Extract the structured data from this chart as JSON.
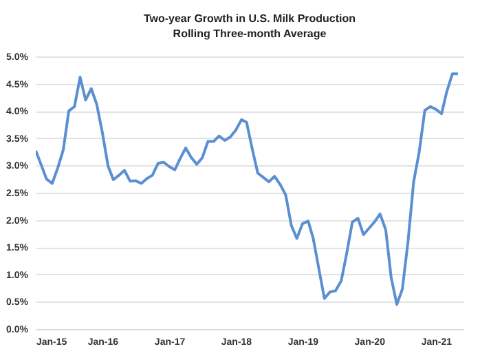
{
  "chart_data": {
    "type": "line",
    "title": "Two-year Growth in U.S. Milk Production",
    "subtitle": "Rolling Three-month Average",
    "x": [
      "2015-01",
      "2015-02",
      "2015-03",
      "2015-04",
      "2015-05",
      "2015-06",
      "2015-07",
      "2015-08",
      "2015-09",
      "2015-10",
      "2015-11",
      "2015-12",
      "2016-01",
      "2016-02",
      "2016-03",
      "2016-04",
      "2016-05",
      "2016-06",
      "2016-07",
      "2016-08",
      "2016-09",
      "2016-10",
      "2016-11",
      "2016-12",
      "2017-01",
      "2017-02",
      "2017-03",
      "2017-04",
      "2017-05",
      "2017-06",
      "2017-07",
      "2017-08",
      "2017-09",
      "2017-10",
      "2017-11",
      "2017-12",
      "2018-01",
      "2018-02",
      "2018-03",
      "2018-04",
      "2018-05",
      "2018-06",
      "2018-07",
      "2018-08",
      "2018-09",
      "2018-10",
      "2018-11",
      "2018-12",
      "2019-01",
      "2019-02",
      "2019-03",
      "2019-04",
      "2019-05",
      "2019-06",
      "2019-07",
      "2019-08",
      "2019-09",
      "2019-10",
      "2019-11",
      "2019-12",
      "2020-01",
      "2020-02",
      "2020-03",
      "2020-04",
      "2020-05",
      "2020-06",
      "2020-07",
      "2020-08",
      "2020-09",
      "2020-10",
      "2020-11",
      "2020-12",
      "2021-01",
      "2021-02",
      "2021-03",
      "2021-04",
      "2021-05"
    ],
    "series": [
      {
        "color": "#5b8fd1",
        "values": [
          3.27,
          3.0,
          2.75,
          2.67,
          2.95,
          3.29,
          4.0,
          4.08,
          4.62,
          4.2,
          4.41,
          4.12,
          3.6,
          2.99,
          2.74,
          2.82,
          2.91,
          2.71,
          2.72,
          2.67,
          2.76,
          2.82,
          3.04,
          3.06,
          2.98,
          2.92,
          3.12,
          3.32,
          3.15,
          3.02,
          3.14,
          3.44,
          3.44,
          3.54,
          3.46,
          3.52,
          3.65,
          3.84,
          3.79,
          3.3,
          2.86,
          2.78,
          2.7,
          2.8,
          2.65,
          2.46,
          1.9,
          1.66,
          1.93,
          1.98,
          1.66,
          1.1,
          0.56,
          0.68,
          0.7,
          0.88,
          1.4,
          1.96,
          2.03,
          1.73,
          1.85,
          1.97,
          2.11,
          1.82,
          0.94,
          0.45,
          0.73,
          1.6,
          2.7,
          3.24,
          4.01,
          4.08,
          4.03,
          3.95,
          4.35,
          4.68,
          4.68
        ]
      }
    ],
    "xlim": [
      "2015-01",
      "2021-06"
    ],
    "xticks": [
      {
        "value": "2015-01",
        "label": "Jan-15"
      },
      {
        "value": "2016-01",
        "label": "Jan-16"
      },
      {
        "value": "2017-01",
        "label": "Jan-17"
      },
      {
        "value": "2018-01",
        "label": "Jan-18"
      },
      {
        "value": "2019-01",
        "label": "Jan-19"
      },
      {
        "value": "2020-01",
        "label": "Jan-20"
      },
      {
        "value": "2021-01",
        "label": "Jan-21"
      }
    ],
    "ylim": [
      0,
      5
    ],
    "yticks": [
      {
        "value": 0,
        "label": "0.0%"
      },
      {
        "value": 0.5,
        "label": "0.5%"
      },
      {
        "value": 1,
        "label": "1.0%"
      },
      {
        "value": 1.5,
        "label": "1.5%"
      },
      {
        "value": 2,
        "label": "2.0%"
      },
      {
        "value": 2.5,
        "label": "2.5%"
      },
      {
        "value": 3,
        "label": "3.0%"
      },
      {
        "value": 3.5,
        "label": "3.5%"
      },
      {
        "value": 4,
        "label": "4.0%"
      },
      {
        "value": 4.5,
        "label": "4.5%"
      },
      {
        "value": 5,
        "label": "5.0%"
      }
    ],
    "grid": "y"
  }
}
